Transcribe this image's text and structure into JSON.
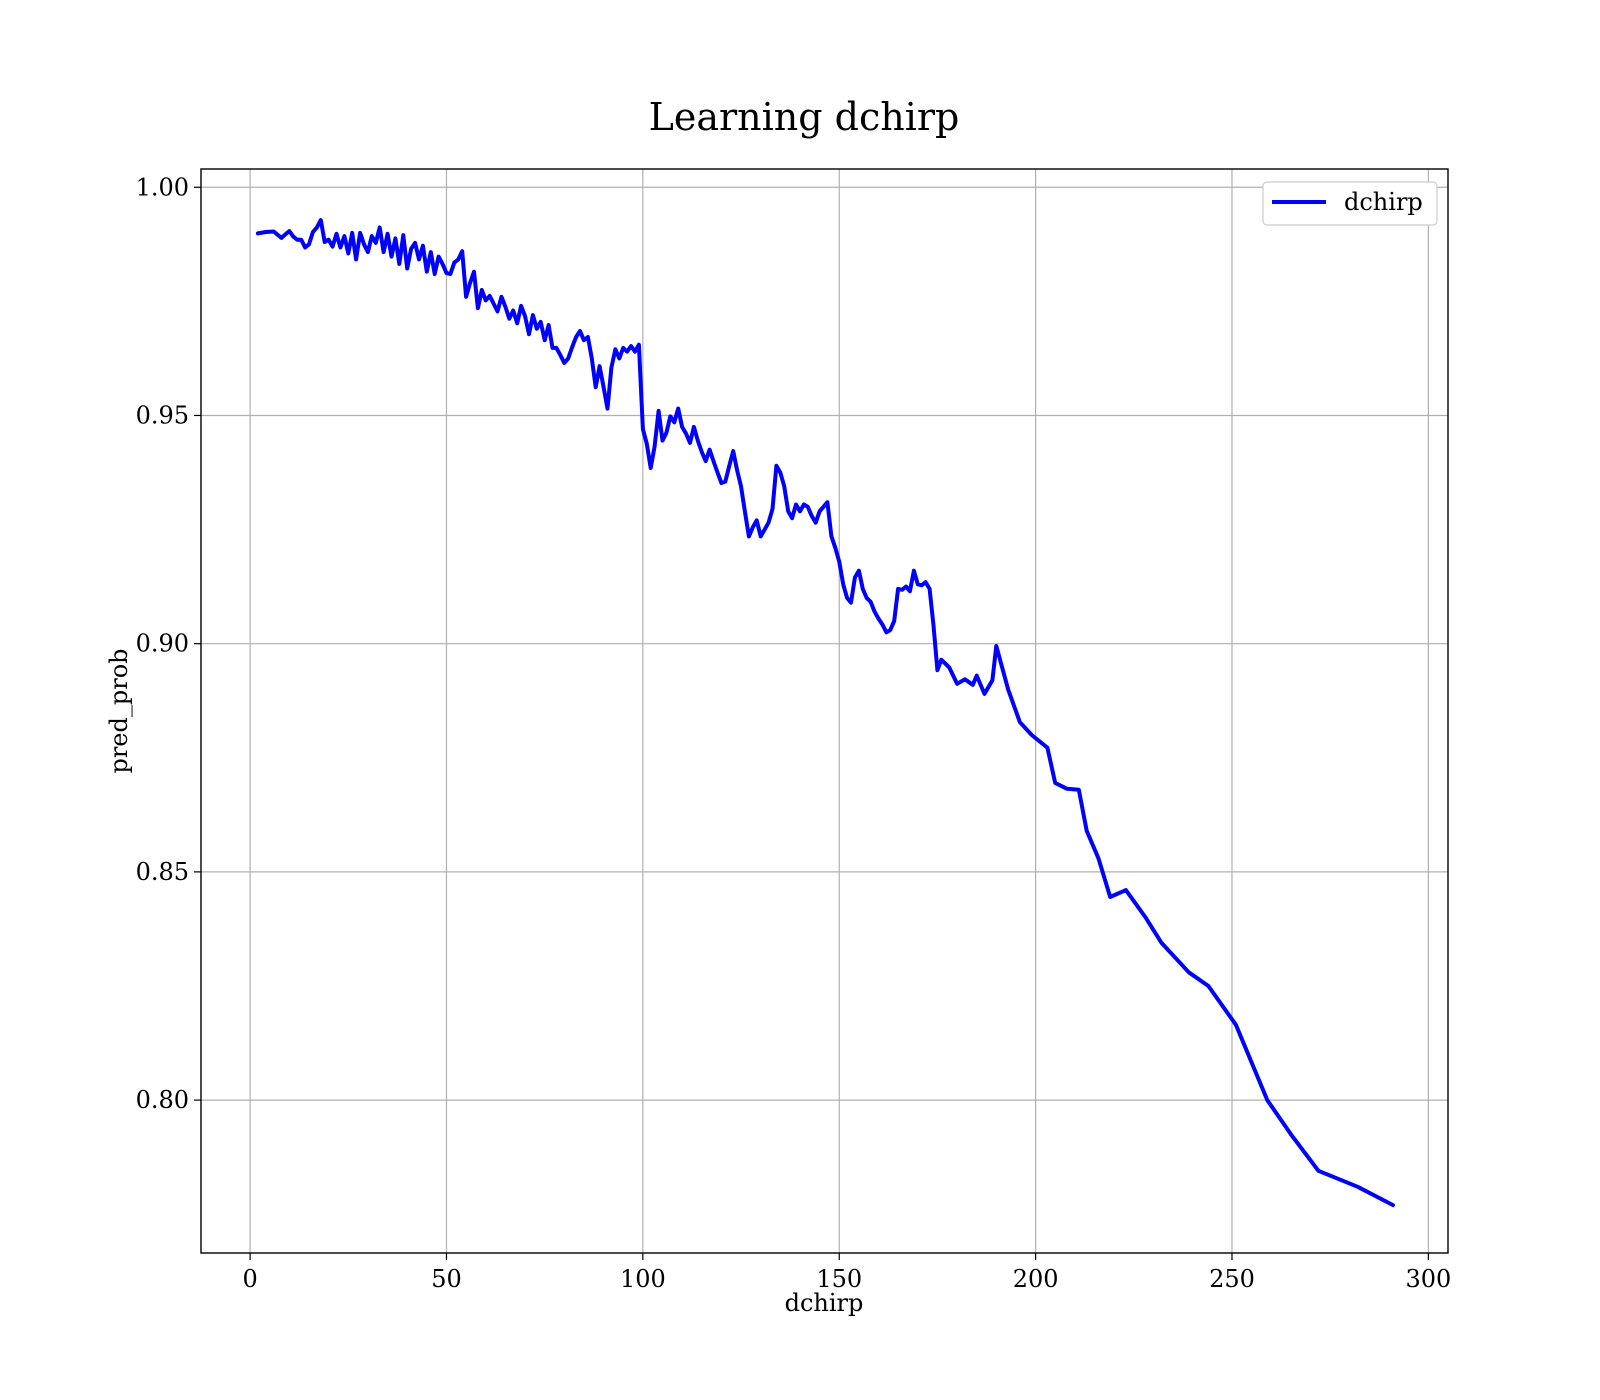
{
  "chart_data": {
    "type": "line",
    "title": "Learning dchirp",
    "xlabel": "dchirp",
    "ylabel": "pred_prob",
    "xlim": [
      -12.5,
      305
    ],
    "ylim": [
      0.7665,
      1.004
    ],
    "xticks": [
      0,
      50,
      100,
      150,
      200,
      250,
      300
    ],
    "xtick_labels": [
      "0",
      "50",
      "100",
      "150",
      "200",
      "250",
      "300"
    ],
    "yticks": [
      0.8,
      0.85,
      0.9,
      0.95,
      1.0
    ],
    "ytick_labels": [
      "0.80",
      "0.85",
      "0.90",
      "0.95",
      "1.00"
    ],
    "grid": true,
    "legend_position": "upper right",
    "series": [
      {
        "name": "dchirp",
        "color": "#0000ff",
        "x": [
          2,
          4,
          6,
          8,
          9,
          10,
          11,
          12,
          13,
          14,
          15,
          16,
          17,
          18,
          19,
          20,
          21,
          22,
          23,
          24,
          25,
          26,
          27,
          28,
          29,
          30,
          31,
          32,
          33,
          34,
          35,
          36,
          37,
          38,
          39,
          40,
          41,
          42,
          43,
          44,
          45,
          46,
          47,
          48,
          49,
          50,
          51,
          52,
          53,
          54,
          55,
          56,
          57,
          58,
          59,
          60,
          61,
          62,
          63,
          64,
          65,
          66,
          67,
          68,
          69,
          70,
          71,
          72,
          73,
          74,
          75,
          76,
          77,
          78,
          79,
          80,
          81,
          82,
          83,
          84,
          85,
          86,
          87,
          88,
          89,
          90,
          91,
          92,
          93,
          94,
          95,
          96,
          97,
          98,
          99,
          100,
          101,
          102,
          103,
          104,
          105,
          106,
          107,
          108,
          109,
          110,
          111,
          112,
          113,
          114,
          115,
          116,
          117,
          118,
          119,
          120,
          121,
          122,
          123,
          124,
          125,
          126,
          127,
          128,
          129,
          130,
          131,
          132,
          133,
          134,
          135,
          136,
          137,
          138,
          139,
          140,
          141,
          142,
          143,
          144,
          145,
          146,
          147,
          148,
          149,
          150,
          151,
          152,
          153,
          154,
          155,
          156,
          157,
          158,
          159,
          160,
          161,
          162,
          163,
          164,
          165,
          166,
          167,
          168,
          169,
          170,
          171,
          172,
          173,
          174,
          175,
          176,
          178,
          180,
          182,
          184,
          185,
          187,
          189,
          190,
          193,
          196,
          199,
          203,
          205,
          208,
          211,
          213,
          216,
          219,
          223,
          228,
          232,
          239,
          244,
          251,
          259,
          265,
          272,
          282,
          291
        ],
        "values": [
          0.9899,
          0.9902,
          0.9903,
          0.9889,
          0.9897,
          0.9904,
          0.9892,
          0.9885,
          0.9885,
          0.9868,
          0.9875,
          0.9902,
          0.9912,
          0.9928,
          0.988,
          0.9885,
          0.987,
          0.9898,
          0.9868,
          0.9893,
          0.9855,
          0.99,
          0.9842,
          0.99,
          0.9875,
          0.9858,
          0.9893,
          0.9878,
          0.9912,
          0.9858,
          0.9898,
          0.9848,
          0.9888,
          0.9832,
          0.9895,
          0.9822,
          0.9865,
          0.9878,
          0.9842,
          0.9872,
          0.9815,
          0.9858,
          0.981,
          0.9848,
          0.9832,
          0.9812,
          0.981,
          0.9835,
          0.9842,
          0.986,
          0.976,
          0.979,
          0.9815,
          0.9735,
          0.9775,
          0.9752,
          0.9762,
          0.9745,
          0.9728,
          0.976,
          0.9738,
          0.9712,
          0.973,
          0.9702,
          0.974,
          0.9718,
          0.9678,
          0.972,
          0.969,
          0.9705,
          0.9665,
          0.9698,
          0.9648,
          0.9648,
          0.9632,
          0.9615,
          0.9625,
          0.965,
          0.9672,
          0.9685,
          0.9665,
          0.9672,
          0.9625,
          0.9562,
          0.9608,
          0.9562,
          0.9515,
          0.9605,
          0.9645,
          0.9625,
          0.9648,
          0.964,
          0.9652,
          0.964,
          0.9655,
          0.947,
          0.9438,
          0.9385,
          0.9432,
          0.951,
          0.9445,
          0.9462,
          0.9498,
          0.9485,
          0.9515,
          0.9475,
          0.946,
          0.944,
          0.9475,
          0.9445,
          0.942,
          0.94,
          0.9425,
          0.94,
          0.9375,
          0.9352,
          0.9355,
          0.939,
          0.9422,
          0.938,
          0.9345,
          0.9288,
          0.9235,
          0.9255,
          0.927,
          0.9235,
          0.925,
          0.9265,
          0.9295,
          0.939,
          0.9375,
          0.9345,
          0.929,
          0.9275,
          0.9305,
          0.929,
          0.9305,
          0.93,
          0.928,
          0.9265,
          0.929,
          0.93,
          0.931,
          0.9235,
          0.921,
          0.918,
          0.913,
          0.91,
          0.909,
          0.9145,
          0.916,
          0.912,
          0.91,
          0.9092,
          0.907,
          0.9055,
          0.9042,
          0.9025,
          0.903,
          0.905,
          0.912,
          0.9118,
          0.9125,
          0.9115,
          0.916,
          0.913,
          0.9128,
          0.9135,
          0.912,
          0.904,
          0.8942,
          0.8965,
          0.8948,
          0.8912,
          0.8922,
          0.891,
          0.893,
          0.889,
          0.892,
          0.8995,
          0.89,
          0.8828,
          0.88,
          0.8772,
          0.8695,
          0.8682,
          0.868,
          0.859,
          0.853,
          0.8445,
          0.846,
          0.84,
          0.8345,
          0.828,
          0.825,
          0.8165,
          0.8,
          0.7925,
          0.7845,
          0.781,
          0.777
        ]
      }
    ]
  }
}
